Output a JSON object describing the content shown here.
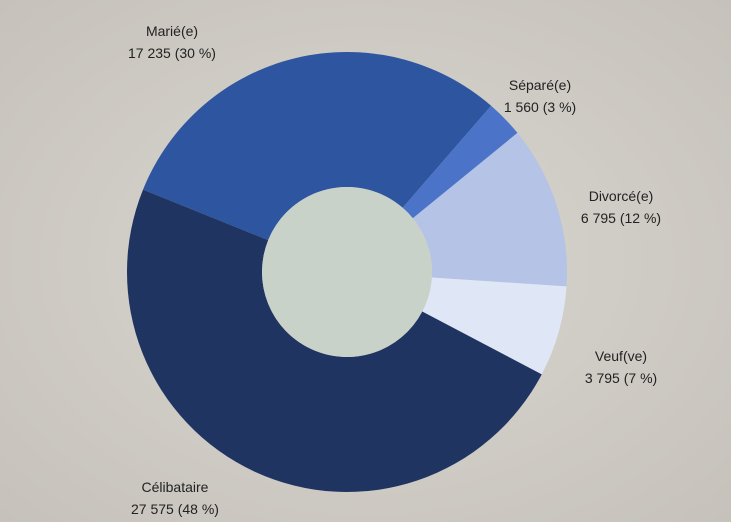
{
  "chart_data": {
    "type": "donut",
    "categories": [
      "Marié(e)",
      "Séparé(e)",
      "Divorcé(e)",
      "Veuf(ve)",
      "Célibataire"
    ],
    "values": [
      17235,
      1560,
      6795,
      3795,
      27575
    ],
    "value_labels": [
      "17 235 (30 %)",
      "1 560 (3 %)",
      "6 795 (12 %)",
      "3 795 (7 %)",
      "27 575 (48 %)"
    ],
    "colors": [
      "#2e55a0",
      "#4b74c8",
      "#b4c3e6",
      "#dfe6f5",
      "#1f3461"
    ]
  }
}
